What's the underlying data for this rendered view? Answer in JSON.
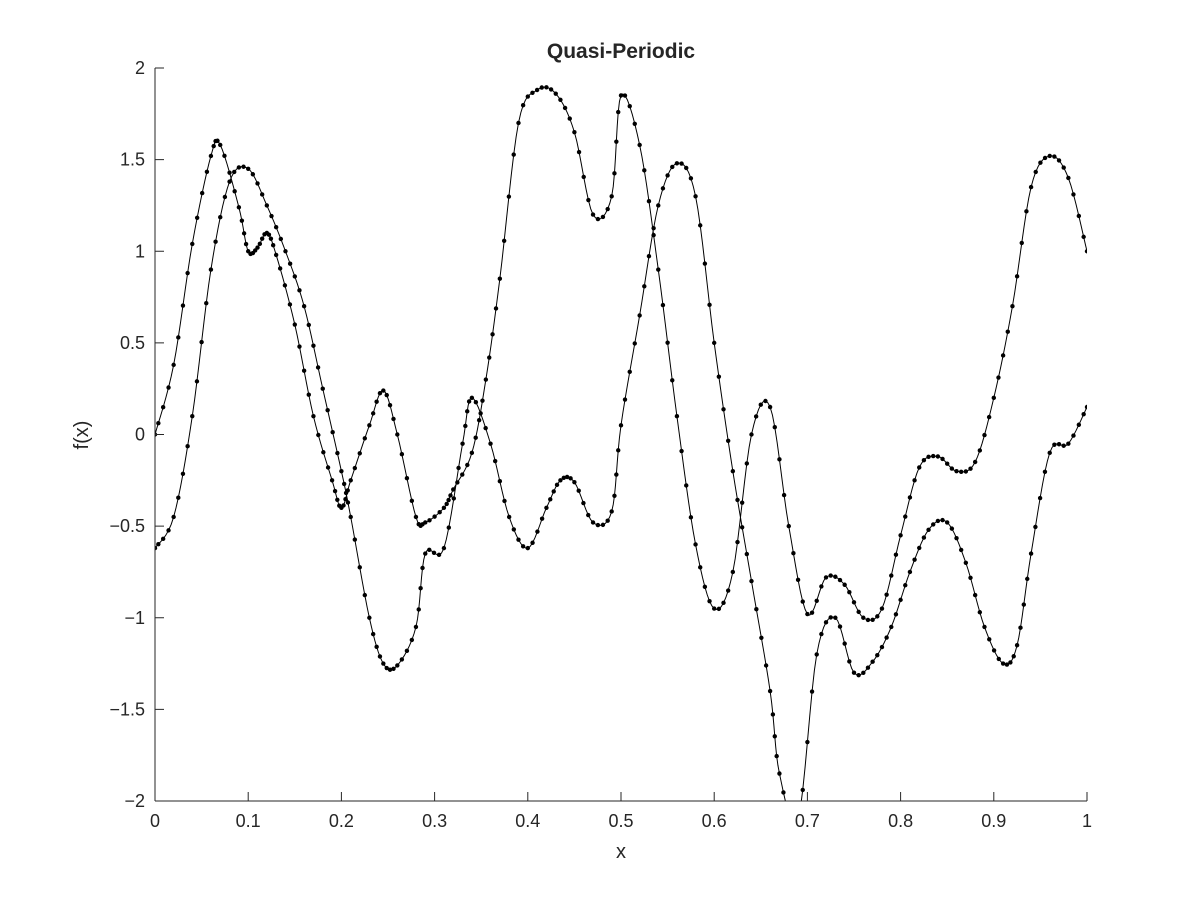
{
  "chart_data": {
    "type": "line",
    "title": "Quasi-Periodic",
    "xlabel": "x",
    "ylabel": "f(x)",
    "xlim": [
      0,
      1
    ],
    "ylim": [
      -2,
      2
    ],
    "xticks": [
      0,
      0.1,
      0.2,
      0.3,
      0.4,
      0.5,
      0.6,
      0.7,
      0.8,
      0.9,
      1
    ],
    "xtick_labels": [
      "0",
      "0.1",
      "0.2",
      "0.3",
      "0.4",
      "0.5",
      "0.6",
      "0.7",
      "0.8",
      "0.9",
      "1"
    ],
    "yticks": [
      -2,
      -1.5,
      -1,
      -0.5,
      0,
      0.5,
      1,
      1.5,
      2
    ],
    "ytick_labels": [
      "−2",
      "−1.5",
      "−1",
      "−0.5",
      "0",
      "0.5",
      "1",
      "1.5",
      "2"
    ],
    "grid": false,
    "line_color": "#000000",
    "marker": "dot",
    "series": [
      {
        "x": [
          0,
          0.02,
          0.04,
          0.06,
          0.08,
          0.1,
          0.12,
          0.14,
          0.16,
          0.18,
          0.2,
          0.21,
          0.23,
          0.245,
          0.26,
          0.28,
          0.29,
          0.31,
          0.33,
          0.34,
          0.36,
          0.38,
          0.4,
          0.42,
          0.435,
          0.45,
          0.47,
          0.49,
          0.5,
          0.52,
          0.54,
          0.56,
          0.58,
          0.6,
          0.62,
          0.64,
          0.66,
          0.67,
          0.69,
          0.71,
          0.73,
          0.75,
          0.77,
          0.79,
          0.81,
          0.83,
          0.85,
          0.87,
          0.89,
          0.91,
          0.925,
          0.94,
          0.96,
          0.98,
          1.0
        ],
        "y": [
          -0.62,
          -0.45,
          0.1,
          0.9,
          1.38,
          1.45,
          1.25,
          1.0,
          0.7,
          0.25,
          -0.2,
          -0.45,
          -1.0,
          -1.25,
          -1.26,
          -1.05,
          -0.65,
          -0.62,
          -0.05,
          0.2,
          -0.05,
          -0.45,
          -0.62,
          -0.4,
          -0.25,
          -0.26,
          -0.48,
          -0.42,
          0.05,
          0.65,
          1.25,
          1.48,
          1.3,
          0.5,
          -0.2,
          -0.8,
          -1.4,
          -1.85,
          -2.1,
          -1.2,
          -1.0,
          -1.3,
          -1.24,
          -1.05,
          -0.75,
          -0.52,
          -0.48,
          -0.7,
          -1.05,
          -1.25,
          -1.15,
          -0.65,
          -0.1,
          -0.05,
          0.15
        ]
      },
      {
        "x": [
          0,
          0.02,
          0.04,
          0.06,
          0.07,
          0.09,
          0.1,
          0.11,
          0.12,
          0.13,
          0.15,
          0.17,
          0.19,
          0.2,
          0.21,
          0.23,
          0.245,
          0.26,
          0.28,
          0.29,
          0.31,
          0.32,
          0.34,
          0.355,
          0.37,
          0.39,
          0.41,
          0.43,
          0.45,
          0.47,
          0.49,
          0.5,
          0.52,
          0.54,
          0.56,
          0.58,
          0.6,
          0.62,
          0.64,
          0.66,
          0.68,
          0.7,
          0.72,
          0.74,
          0.76,
          0.78,
          0.8,
          0.82,
          0.84,
          0.86,
          0.88,
          0.9,
          0.92,
          0.94,
          0.96,
          0.98,
          1.0
        ],
        "y": [
          0.0,
          0.38,
          1.04,
          1.52,
          1.58,
          1.24,
          1.0,
          1.02,
          1.1,
          0.98,
          0.6,
          0.1,
          -0.25,
          -0.4,
          -0.25,
          0.05,
          0.24,
          0.0,
          -0.45,
          -0.48,
          -0.4,
          -0.3,
          -0.1,
          0.3,
          0.85,
          1.7,
          1.88,
          1.86,
          1.65,
          1.2,
          1.3,
          1.85,
          1.58,
          0.9,
          0.1,
          -0.6,
          -0.95,
          -0.75,
          0.0,
          0.15,
          -0.5,
          -0.98,
          -0.78,
          -0.82,
          -1.0,
          -0.95,
          -0.55,
          -0.18,
          -0.12,
          -0.2,
          -0.15,
          0.2,
          0.7,
          1.35,
          1.52,
          1.4,
          1.0
        ]
      }
    ]
  }
}
